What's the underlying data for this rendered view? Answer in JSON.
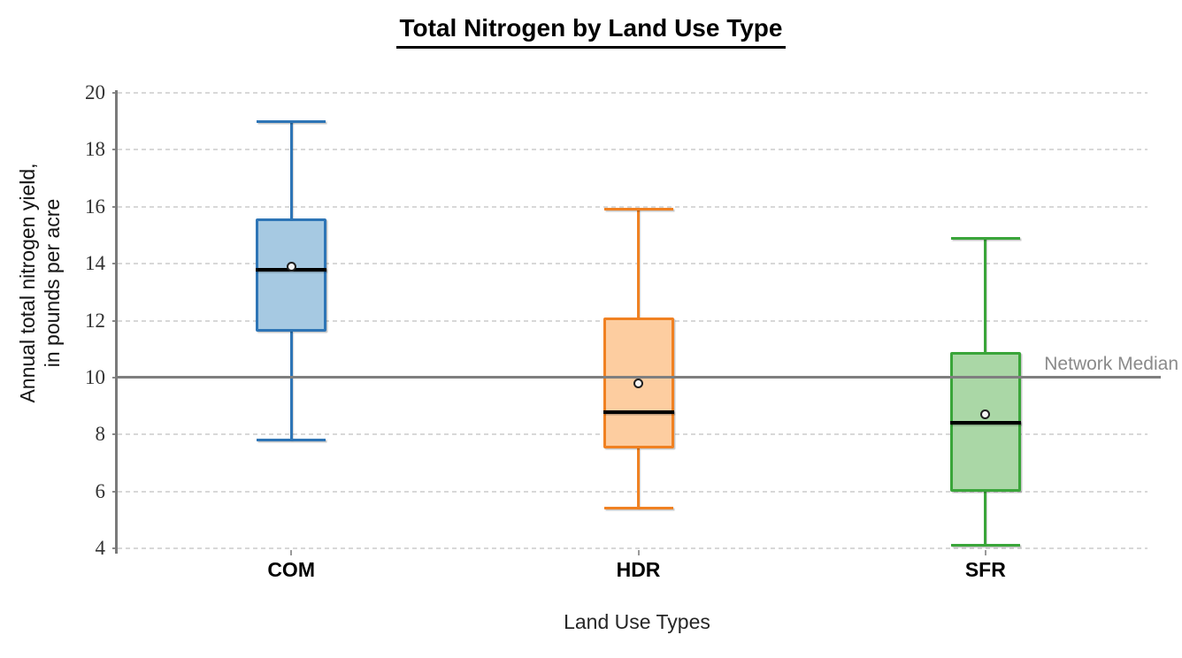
{
  "page": {
    "background": "#ffffff"
  },
  "chart_data": {
    "type": "box",
    "title": "Total Nitrogen by Land Use Type",
    "xlabel": "Land Use Types",
    "ylabel_lines": [
      "Annual total nitrogen yield,",
      "in pounds per acre"
    ],
    "ylim": [
      4,
      20
    ],
    "yticks": [
      20,
      18,
      16,
      14,
      12,
      10,
      8,
      6,
      4
    ],
    "grid": "horizontal-dashed",
    "categories": [
      "COM",
      "HDR",
      "SFR"
    ],
    "series": [
      {
        "name": "COM",
        "whisker_low": 7.8,
        "q1": 11.6,
        "median": 13.8,
        "mean": 13.9,
        "q3": 15.6,
        "whisker_high": 19.0,
        "fill": "#A6C9E2",
        "stroke": "#2E75B6"
      },
      {
        "name": "HDR",
        "whisker_low": 5.4,
        "q1": 7.5,
        "median": 8.8,
        "mean": 9.8,
        "q3": 12.1,
        "whisker_high": 15.9,
        "fill": "#FDCDA0",
        "stroke": "#F08122"
      },
      {
        "name": "SFR",
        "whisker_low": 4.1,
        "q1": 6.0,
        "median": 8.4,
        "mean": 8.7,
        "q3": 10.9,
        "whisker_high": 14.9,
        "fill": "#AAD7A6",
        "stroke": "#3AA53A"
      }
    ],
    "reference_line": {
      "value": 10,
      "label": "Network Median",
      "color": "#7f7f7f"
    },
    "median_line_color": "#000000",
    "mean_marker": "white-circle-black-ring",
    "legend": "none"
  }
}
